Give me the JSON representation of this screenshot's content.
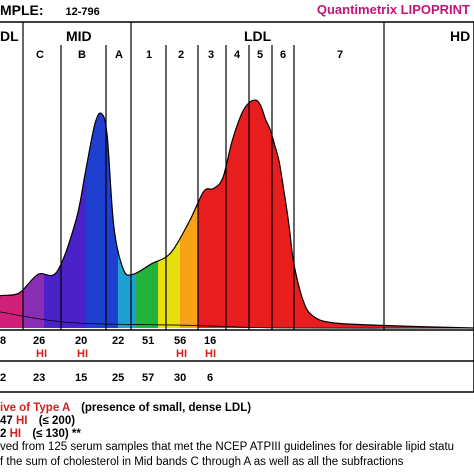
{
  "header": {
    "sample_label": "MPLE:",
    "sample_id": "12-796",
    "brand_name": "Quantimetrix LIPOPRINT"
  },
  "bands": {
    "vldl": "DL",
    "mid": "MID",
    "mid_c": "C",
    "mid_b": "B",
    "mid_a": "A",
    "ldl": "LDL",
    "ldl_1": "1",
    "ldl_2": "2",
    "ldl_3": "3",
    "ldl_4": "4",
    "ldl_5": "5",
    "ldl_6": "6",
    "ldl_7": "7",
    "hdl": "HD"
  },
  "row1": {
    "vldl": "8",
    "c": "26",
    "b": "20",
    "a": "22",
    "ldl1": "51",
    "ldl2": "56",
    "ldl3": "16",
    "c_flag": "HI",
    "b_flag": "HI",
    "ldl2_flag": "HI",
    "ldl3_flag": "HI"
  },
  "row2": {
    "vldl": "2",
    "c": "23",
    "b": "15",
    "a": "25",
    "ldl1": "57",
    "ldl2": "30",
    "ldl3": "6"
  },
  "notes": {
    "line1_red": "ive of Type A",
    "line1_black": "(presence of small, dense LDL)",
    "line2_num": "47",
    "line2_flag": "HI",
    "line2_range": "(≤ 200)",
    "line3_num": "2",
    "line3_flag": "HI",
    "line3_range": "(≤ 130) **",
    "line4": "ved from 125 serum samples that met the NCEP ATPIII guidelines for desirable lipid statu",
    "line5": "f the sum of cholesterol in Mid bands C through A as well as all the subfractions"
  },
  "chart_data": {
    "type": "area",
    "title": "",
    "xlabel": "",
    "ylabel": "",
    "x": [
      -2,
      0,
      4,
      8,
      12,
      16,
      18,
      20,
      21.4,
      22.6,
      24,
      26,
      28,
      32,
      36,
      40,
      43,
      45,
      47,
      49,
      51,
      52.5,
      54,
      55,
      56,
      57,
      58,
      58.9,
      60,
      61,
      62,
      64,
      66,
      70,
      80,
      100
    ],
    "y": [
      0.1,
      0.12,
      0.13,
      0.2,
      0.21,
      0.4,
      0.58,
      0.76,
      0.8,
      0.72,
      0.38,
      0.22,
      0.2,
      0.24,
      0.28,
      0.4,
      0.51,
      0.52,
      0.56,
      0.7,
      0.8,
      0.84,
      0.85,
      0.83,
      0.78,
      0.74,
      0.68,
      0.62,
      0.5,
      0.38,
      0.24,
      0.1,
      0.045,
      0.02,
      0.01,
      0.0
    ],
    "xlim": [
      0,
      100
    ],
    "ylim": [
      0,
      1
    ],
    "grid": false,
    "colors": [
      "#d0207a",
      "#8a2db5",
      "#4a22c8",
      "#1f3fd0",
      "#1fa0d0",
      "#22b43a",
      "#e8df0e",
      "#f6a416",
      "#e81e1e"
    ]
  }
}
